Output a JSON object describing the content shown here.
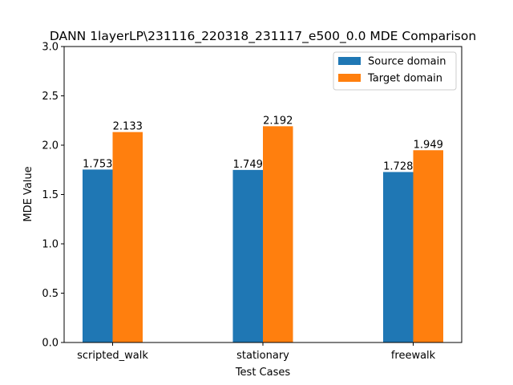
{
  "chart_data": {
    "type": "bar",
    "title": "DANN 1layerLP\\231116_220318_231117_e500_0.0 MDE Comparison",
    "xlabel": "Test Cases",
    "ylabel": "MDE Value",
    "categories": [
      "scripted_walk",
      "stationary",
      "freewalk"
    ],
    "series": [
      {
        "name": "Source domain",
        "color": "#1f77b4",
        "values": [
          1.753,
          1.749,
          1.728
        ]
      },
      {
        "name": "Target domain",
        "color": "#ff7f0e",
        "values": [
          2.133,
          2.192,
          1.949
        ]
      }
    ],
    "data_labels": [
      [
        "1.753",
        "1.749",
        "1.728"
      ],
      [
        "2.133",
        "2.192",
        "1.949"
      ]
    ],
    "ylim": [
      0,
      3.0
    ],
    "yticks": [
      0.0,
      0.5,
      1.0,
      1.5,
      2.0,
      2.5,
      3.0
    ],
    "ytick_labels": [
      "0.0",
      "0.5",
      "1.0",
      "1.5",
      "2.0",
      "2.5",
      "3.0"
    ],
    "grid": false,
    "legend_position": "top-right"
  }
}
